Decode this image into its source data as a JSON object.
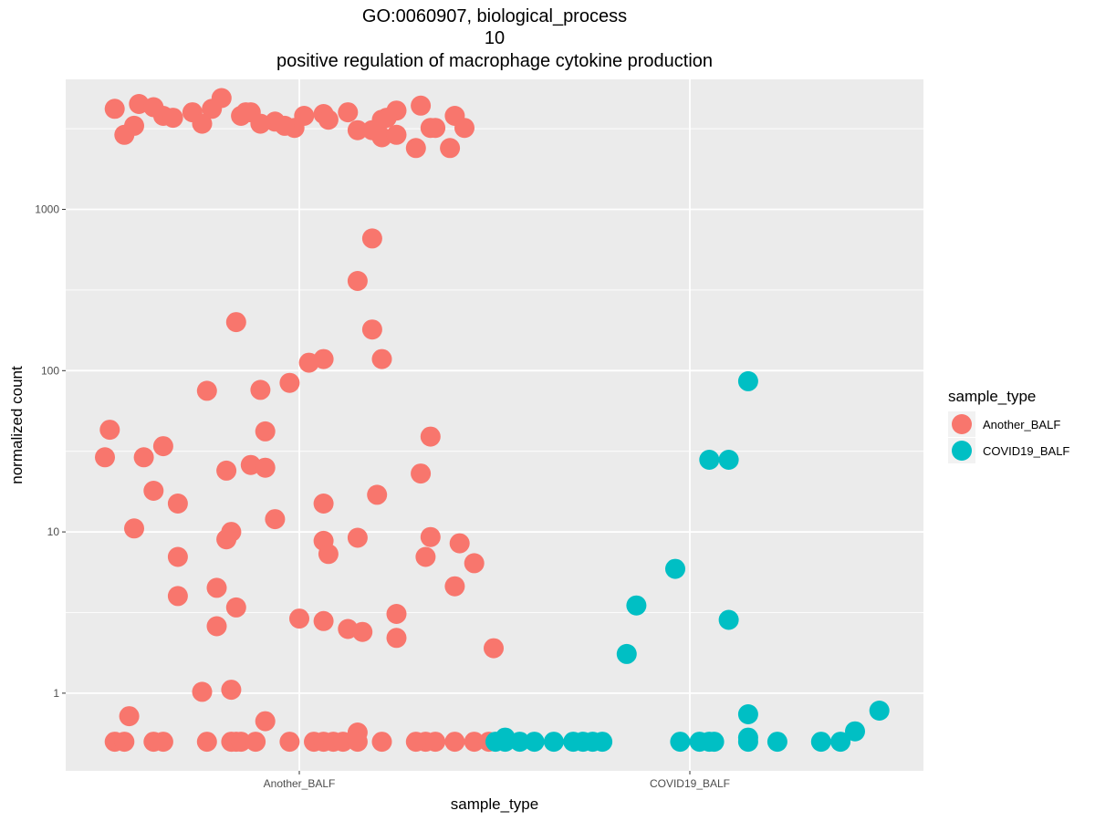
{
  "chart_data": {
    "type": "scatter",
    "title_lines": [
      "GO:0060907, biological_process",
      "10",
      "positive regulation of macrophage cytokine production"
    ],
    "xlabel": "sample_type",
    "ylabel": "normalized count",
    "y_scale": "log10",
    "ylim": [
      0.33,
      6400
    ],
    "y_ticks": [
      1,
      10,
      100,
      1000
    ],
    "y_tick_labels": [
      "1",
      "10",
      "100",
      "1000"
    ],
    "categories": [
      "Another_BALF",
      "COVID19_BALF"
    ],
    "grid": true,
    "legend": {
      "title": "sample_type",
      "position": "right"
    },
    "series": [
      {
        "name": "Another_BALF",
        "color": "#F8766D",
        "points": [
          {
            "x": "Another_BALF",
            "jitter": -0.38,
            "y": 4200
          },
          {
            "x": "Another_BALF",
            "jitter": -0.33,
            "y": 4500
          },
          {
            "x": "Another_BALF",
            "jitter": -0.28,
            "y": 3800
          },
          {
            "x": "Another_BALF",
            "jitter": -0.22,
            "y": 4000
          },
          {
            "x": "Another_BALF",
            "jitter": -0.2,
            "y": 3400
          },
          {
            "x": "Another_BALF",
            "jitter": -0.16,
            "y": 4900
          },
          {
            "x": "Another_BALF",
            "jitter": -0.12,
            "y": 3800
          },
          {
            "x": "Another_BALF",
            "jitter": -0.1,
            "y": 4000
          },
          {
            "x": "Another_BALF",
            "jitter": -0.05,
            "y": 3500
          },
          {
            "x": "Another_BALF",
            "jitter": -0.01,
            "y": 3200
          },
          {
            "x": "Another_BALF",
            "jitter": 0.01,
            "y": 3800
          },
          {
            "x": "Another_BALF",
            "jitter": 0.05,
            "y": 3900
          },
          {
            "x": "Another_BALF",
            "jitter": 0.1,
            "y": 4000
          },
          {
            "x": "Another_BALF",
            "jitter": 0.12,
            "y": 3100
          },
          {
            "x": "Another_BALF",
            "jitter": 0.17,
            "y": 3600
          },
          {
            "x": "Another_BALF",
            "jitter": 0.2,
            "y": 4100
          },
          {
            "x": "Another_BALF",
            "jitter": 0.25,
            "y": 4400
          },
          {
            "x": "Another_BALF",
            "jitter": 0.27,
            "y": 3200
          },
          {
            "x": "Another_BALF",
            "jitter": 0.32,
            "y": 3800
          },
          {
            "x": "Another_BALF",
            "jitter": 0.34,
            "y": 3200
          },
          {
            "x": "Another_BALF",
            "jitter": -0.36,
            "y": 2900
          },
          {
            "x": "Another_BALF",
            "jitter": -0.34,
            "y": 3300
          },
          {
            "x": "Another_BALF",
            "jitter": -0.3,
            "y": 4300
          },
          {
            "x": "Another_BALF",
            "jitter": -0.26,
            "y": 3700
          },
          {
            "x": "Another_BALF",
            "jitter": -0.18,
            "y": 4200
          },
          {
            "x": "Another_BALF",
            "jitter": -0.11,
            "y": 4000
          },
          {
            "x": "Another_BALF",
            "jitter": -0.08,
            "y": 3400
          },
          {
            "x": "Another_BALF",
            "jitter": -0.03,
            "y": 3300
          },
          {
            "x": "Another_BALF",
            "jitter": 0.06,
            "y": 3600
          },
          {
            "x": "Another_BALF",
            "jitter": 0.17,
            "y": 2800
          },
          {
            "x": "Another_BALF",
            "jitter": 0.2,
            "y": 2900
          },
          {
            "x": "Another_BALF",
            "jitter": 0.24,
            "y": 2400
          },
          {
            "x": "Another_BALF",
            "jitter": 0.28,
            "y": 3200
          },
          {
            "x": "Another_BALF",
            "jitter": 0.31,
            "y": 2400
          },
          {
            "x": "Another_BALF",
            "jitter": 0.18,
            "y": 3700
          },
          {
            "x": "Another_BALF",
            "jitter": 0.15,
            "y": 3100
          },
          {
            "x": "Another_BALF",
            "jitter": 0.15,
            "y": 660
          },
          {
            "x": "Another_BALF",
            "jitter": 0.12,
            "y": 360
          },
          {
            "x": "Another_BALF",
            "jitter": -0.13,
            "y": 200
          },
          {
            "x": "Another_BALF",
            "jitter": 0.15,
            "y": 180
          },
          {
            "x": "Another_BALF",
            "jitter": 0.17,
            "y": 118
          },
          {
            "x": "Another_BALF",
            "jitter": 0.05,
            "y": 118
          },
          {
            "x": "Another_BALF",
            "jitter": 0.02,
            "y": 112
          },
          {
            "x": "Another_BALF",
            "jitter": -0.02,
            "y": 84
          },
          {
            "x": "Another_BALF",
            "jitter": -0.08,
            "y": 76
          },
          {
            "x": "Another_BALF",
            "jitter": -0.19,
            "y": 75
          },
          {
            "x": "Another_BALF",
            "jitter": -0.39,
            "y": 43
          },
          {
            "x": "Another_BALF",
            "jitter": -0.07,
            "y": 42
          },
          {
            "x": "Another_BALF",
            "jitter": 0.27,
            "y": 39
          },
          {
            "x": "Another_BALF",
            "jitter": -0.28,
            "y": 34
          },
          {
            "x": "Another_BALF",
            "jitter": -0.32,
            "y": 29
          },
          {
            "x": "Another_BALF",
            "jitter": -0.4,
            "y": 29
          },
          {
            "x": "Another_BALF",
            "jitter": -0.1,
            "y": 26
          },
          {
            "x": "Another_BALF",
            "jitter": -0.07,
            "y": 25
          },
          {
            "x": "Another_BALF",
            "jitter": -0.15,
            "y": 24
          },
          {
            "x": "Another_BALF",
            "jitter": 0.25,
            "y": 23
          },
          {
            "x": "Another_BALF",
            "jitter": -0.3,
            "y": 18
          },
          {
            "x": "Another_BALF",
            "jitter": 0.16,
            "y": 17
          },
          {
            "x": "Another_BALF",
            "jitter": 0.05,
            "y": 15
          },
          {
            "x": "Another_BALF",
            "jitter": -0.25,
            "y": 15
          },
          {
            "x": "Another_BALF",
            "jitter": -0.05,
            "y": 12
          },
          {
            "x": "Another_BALF",
            "jitter": -0.34,
            "y": 10.5
          },
          {
            "x": "Another_BALF",
            "jitter": -0.14,
            "y": 10
          },
          {
            "x": "Another_BALF",
            "jitter": 0.27,
            "y": 9.3
          },
          {
            "x": "Another_BALF",
            "jitter": 0.12,
            "y": 9.2
          },
          {
            "x": "Another_BALF",
            "jitter": -0.15,
            "y": 9
          },
          {
            "x": "Another_BALF",
            "jitter": 0.05,
            "y": 8.8
          },
          {
            "x": "Another_BALF",
            "jitter": 0.33,
            "y": 8.5
          },
          {
            "x": "Another_BALF",
            "jitter": 0.06,
            "y": 7.3
          },
          {
            "x": "Another_BALF",
            "jitter": -0.25,
            "y": 7
          },
          {
            "x": "Another_BALF",
            "jitter": 0.26,
            "y": 7
          },
          {
            "x": "Another_BALF",
            "jitter": 0.36,
            "y": 6.4
          },
          {
            "x": "Another_BALF",
            "jitter": 0.32,
            "y": 4.6
          },
          {
            "x": "Another_BALF",
            "jitter": -0.17,
            "y": 4.5
          },
          {
            "x": "Another_BALF",
            "jitter": -0.25,
            "y": 4
          },
          {
            "x": "Another_BALF",
            "jitter": -0.13,
            "y": 3.4
          },
          {
            "x": "Another_BALF",
            "jitter": 0.2,
            "y": 3.1
          },
          {
            "x": "Another_BALF",
            "jitter": 0,
            "y": 2.9
          },
          {
            "x": "Another_BALF",
            "jitter": 0.05,
            "y": 2.8
          },
          {
            "x": "Another_BALF",
            "jitter": -0.17,
            "y": 2.6
          },
          {
            "x": "Another_BALF",
            "jitter": 0.1,
            "y": 2.5
          },
          {
            "x": "Another_BALF",
            "jitter": 0.13,
            "y": 2.4
          },
          {
            "x": "Another_BALF",
            "jitter": 0.2,
            "y": 2.2
          },
          {
            "x": "Another_BALF",
            "jitter": 0.4,
            "y": 1.9
          },
          {
            "x": "Another_BALF",
            "jitter": -0.14,
            "y": 1.05
          },
          {
            "x": "Another_BALF",
            "jitter": -0.2,
            "y": 1.02
          },
          {
            "x": "Another_BALF",
            "jitter": -0.35,
            "y": 0.72
          },
          {
            "x": "Another_BALF",
            "jitter": -0.07,
            "y": 0.67
          },
          {
            "x": "Another_BALF",
            "jitter": 0.12,
            "y": 0.57
          },
          {
            "x": "Another_BALF",
            "jitter": -0.38,
            "y": 0.5
          },
          {
            "x": "Another_BALF",
            "jitter": -0.36,
            "y": 0.5
          },
          {
            "x": "Another_BALF",
            "jitter": -0.3,
            "y": 0.5
          },
          {
            "x": "Another_BALF",
            "jitter": -0.28,
            "y": 0.5
          },
          {
            "x": "Another_BALF",
            "jitter": -0.19,
            "y": 0.5
          },
          {
            "x": "Another_BALF",
            "jitter": -0.14,
            "y": 0.5
          },
          {
            "x": "Another_BALF",
            "jitter": -0.13,
            "y": 0.5
          },
          {
            "x": "Another_BALF",
            "jitter": -0.12,
            "y": 0.5
          },
          {
            "x": "Another_BALF",
            "jitter": -0.09,
            "y": 0.5
          },
          {
            "x": "Another_BALF",
            "jitter": -0.02,
            "y": 0.5
          },
          {
            "x": "Another_BALF",
            "jitter": 0.03,
            "y": 0.5
          },
          {
            "x": "Another_BALF",
            "jitter": 0.05,
            "y": 0.5
          },
          {
            "x": "Another_BALF",
            "jitter": 0.07,
            "y": 0.5
          },
          {
            "x": "Another_BALF",
            "jitter": 0.09,
            "y": 0.5
          },
          {
            "x": "Another_BALF",
            "jitter": 0.12,
            "y": 0.5
          },
          {
            "x": "Another_BALF",
            "jitter": 0.17,
            "y": 0.5
          },
          {
            "x": "Another_BALF",
            "jitter": 0.24,
            "y": 0.5
          },
          {
            "x": "Another_BALF",
            "jitter": 0.26,
            "y": 0.5
          },
          {
            "x": "Another_BALF",
            "jitter": 0.28,
            "y": 0.5
          },
          {
            "x": "Another_BALF",
            "jitter": 0.32,
            "y": 0.5
          },
          {
            "x": "Another_BALF",
            "jitter": 0.36,
            "y": 0.5
          },
          {
            "x": "Another_BALF",
            "jitter": 0.39,
            "y": 0.5
          }
        ]
      },
      {
        "name": "COVID19_BALF",
        "color": "#00BFC4",
        "points": [
          {
            "x": "COVID19_BALF",
            "jitter": 0.12,
            "y": 86
          },
          {
            "x": "COVID19_BALF",
            "jitter": 0.04,
            "y": 28
          },
          {
            "x": "COVID19_BALF",
            "jitter": 0.08,
            "y": 28
          },
          {
            "x": "COVID19_BALF",
            "jitter": -0.03,
            "y": 5.9
          },
          {
            "x": "COVID19_BALF",
            "jitter": -0.11,
            "y": 3.5
          },
          {
            "x": "COVID19_BALF",
            "jitter": 0.08,
            "y": 2.85
          },
          {
            "x": "COVID19_BALF",
            "jitter": -0.13,
            "y": 1.75
          },
          {
            "x": "COVID19_BALF",
            "jitter": 0.39,
            "y": 0.78
          },
          {
            "x": "COVID19_BALF",
            "jitter": 0.12,
            "y": 0.74
          },
          {
            "x": "COVID19_BALF",
            "jitter": 0.34,
            "y": 0.58
          },
          {
            "x": "COVID19_BALF",
            "jitter": 0.12,
            "y": 0.53
          },
          {
            "x": "COVID19_BALF",
            "jitter": -0.38,
            "y": 0.53
          },
          {
            "x": "COVID19_BALF",
            "jitter": -0.4,
            "y": 0.5
          },
          {
            "x": "COVID19_BALF",
            "jitter": -0.38,
            "y": 0.5
          },
          {
            "x": "COVID19_BALF",
            "jitter": -0.35,
            "y": 0.5
          },
          {
            "x": "COVID19_BALF",
            "jitter": -0.32,
            "y": 0.5
          },
          {
            "x": "COVID19_BALF",
            "jitter": -0.28,
            "y": 0.5
          },
          {
            "x": "COVID19_BALF",
            "jitter": -0.24,
            "y": 0.5
          },
          {
            "x": "COVID19_BALF",
            "jitter": -0.22,
            "y": 0.5
          },
          {
            "x": "COVID19_BALF",
            "jitter": -0.2,
            "y": 0.5
          },
          {
            "x": "COVID19_BALF",
            "jitter": -0.18,
            "y": 0.5
          },
          {
            "x": "COVID19_BALF",
            "jitter": -0.02,
            "y": 0.5
          },
          {
            "x": "COVID19_BALF",
            "jitter": 0.02,
            "y": 0.5
          },
          {
            "x": "COVID19_BALF",
            "jitter": 0.04,
            "y": 0.5
          },
          {
            "x": "COVID19_BALF",
            "jitter": 0.05,
            "y": 0.5
          },
          {
            "x": "COVID19_BALF",
            "jitter": 0.12,
            "y": 0.5
          },
          {
            "x": "COVID19_BALF",
            "jitter": 0.18,
            "y": 0.5
          },
          {
            "x": "COVID19_BALF",
            "jitter": 0.27,
            "y": 0.5
          },
          {
            "x": "COVID19_BALF",
            "jitter": 0.31,
            "y": 0.5
          }
        ]
      }
    ]
  }
}
